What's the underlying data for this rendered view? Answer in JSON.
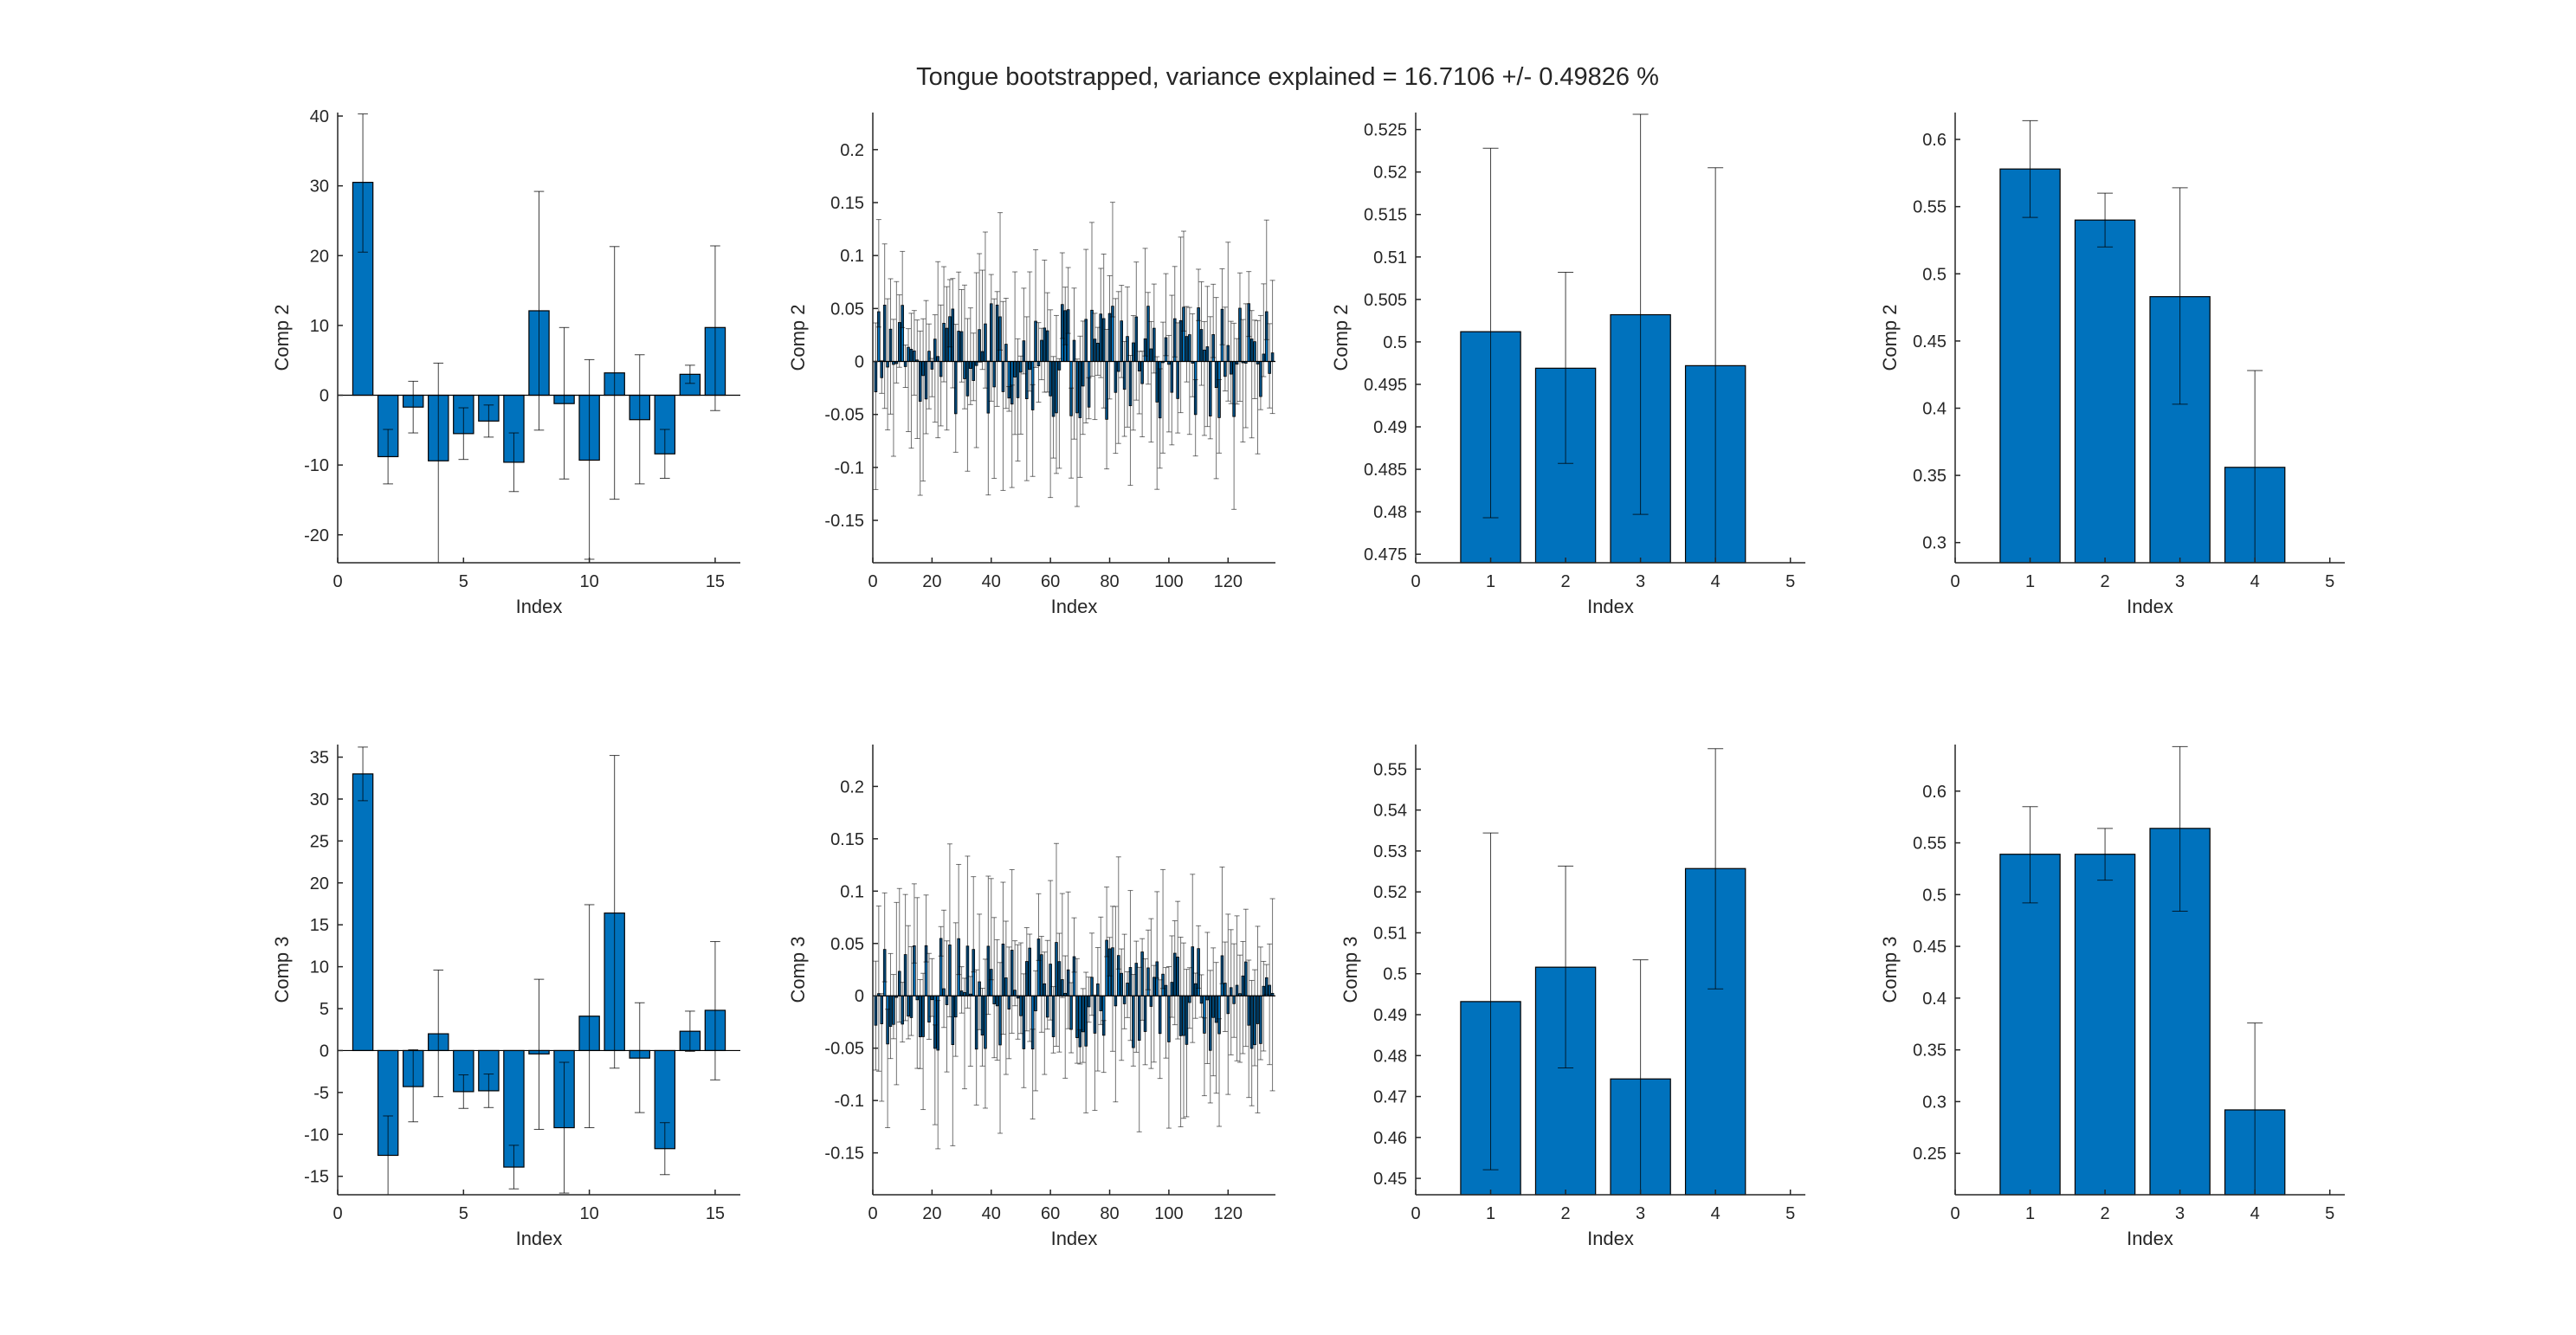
{
  "figure": {
    "suptitle": "Tongue bootstrapped, variance explained = 16.7106 +/- 0.49826 %",
    "bar_color": "#0072BD",
    "bar_edge": "#000000",
    "axis_color": "#262626"
  },
  "chart_data": [
    {
      "type": "bar",
      "ylabel": "Comp 2",
      "xlabel": "Index",
      "xlim": [
        0,
        16
      ],
      "ylim": [
        -24,
        40.5
      ],
      "xticks": [
        0,
        5,
        10,
        15
      ],
      "xtick_labels": [
        "0",
        "5",
        "10",
        "15"
      ],
      "yticks": [
        -20,
        -10,
        0,
        10,
        20,
        30,
        40
      ],
      "ytick_labels": [
        "-20",
        "-10",
        "0",
        "10",
        "20",
        "30",
        "40"
      ],
      "x": [
        1,
        2,
        3,
        4,
        5,
        6,
        7,
        8,
        9,
        10,
        11,
        12,
        13,
        14,
        15
      ],
      "values": [
        30.5,
        -8.8,
        -1.7,
        -9.4,
        -5.5,
        -3.7,
        -9.6,
        12.1,
        -1.2,
        -9.3,
        3.2,
        -3.5,
        -8.4,
        3.0,
        9.7
      ],
      "err_low": [
        20.5,
        -12.7,
        -5.4,
        -24.0,
        -9.2,
        -6.0,
        -13.8,
        -5.0,
        -12.0,
        -23.5,
        -14.9,
        -12.7,
        -11.9,
        1.7,
        -2.2
      ],
      "err_high": [
        40.3,
        -4.9,
        2.0,
        4.6,
        -1.8,
        -1.4,
        -5.4,
        29.2,
        9.7,
        5.1,
        21.3,
        5.8,
        -4.9,
        4.3,
        21.4
      ]
    },
    {
      "type": "bar",
      "ylabel": "Comp 2",
      "xlabel": "Index",
      "xlim": [
        0,
        136
      ],
      "ylim": [
        -0.19,
        0.235
      ],
      "xticks": [
        0,
        20,
        40,
        60,
        80,
        100,
        120
      ],
      "xtick_labels": [
        "0",
        "20",
        "40",
        "60",
        "80",
        "100",
        "120"
      ],
      "yticks": [
        -0.15,
        -0.1,
        -0.05,
        0,
        0.05,
        0.1,
        0.15,
        0.2
      ],
      "ytick_labels": [
        "-0.15",
        "-0.1",
        "-0.05",
        "0",
        "0.05",
        "0.1",
        "0.15",
        "0.2"
      ],
      "n": 135,
      "seed": 7,
      "amplitude": 0.055,
      "err_scale": 0.09,
      "values": []
    },
    {
      "type": "bar",
      "ylabel": "Comp 2",
      "xlabel": "Index",
      "xlim": [
        0,
        5.2
      ],
      "ylim": [
        0.474,
        0.527
      ],
      "xticks": [
        0,
        1,
        2,
        3,
        4,
        5
      ],
      "xtick_labels": [
        "0",
        "1",
        "2",
        "3",
        "4",
        "5"
      ],
      "yticks": [
        0.475,
        0.48,
        0.485,
        0.49,
        0.495,
        0.5,
        0.505,
        0.51,
        0.515,
        0.52,
        0.525
      ],
      "ytick_labels": [
        "0.475",
        "0.48",
        "0.485",
        "0.49",
        "0.495",
        "0.5",
        "0.505",
        "0.51",
        "0.515",
        "0.52",
        "0.525"
      ],
      "x": [
        1,
        2,
        3,
        4
      ],
      "values": [
        0.5012,
        0.4969,
        0.5032,
        0.4972
      ],
      "err_low": [
        0.4793,
        0.4857,
        0.4797,
        0.474
      ],
      "err_high": [
        0.5228,
        0.5082,
        0.5268,
        0.5205
      ]
    },
    {
      "type": "bar",
      "ylabel": "Comp 2",
      "xlabel": "Index",
      "xlim": [
        0,
        5.2
      ],
      "ylim": [
        0.285,
        0.62
      ],
      "xticks": [
        0,
        1,
        2,
        3,
        4,
        5
      ],
      "xtick_labels": [
        "0",
        "1",
        "2",
        "3",
        "4",
        "5"
      ],
      "yticks": [
        0.3,
        0.35,
        0.4,
        0.45,
        0.5,
        0.55,
        0.6
      ],
      "ytick_labels": [
        "0.3",
        "0.35",
        "0.4",
        "0.45",
        "0.5",
        "0.55",
        "0.6"
      ],
      "x": [
        1,
        2,
        3,
        4
      ],
      "values": [
        0.578,
        0.54,
        0.483,
        0.356
      ],
      "err_low": [
        0.542,
        0.52,
        0.403,
        0.285
      ],
      "err_high": [
        0.614,
        0.56,
        0.564,
        0.428
      ]
    },
    {
      "type": "bar",
      "ylabel": "Comp 3",
      "xlabel": "Index",
      "xlim": [
        0,
        16
      ],
      "ylim": [
        -17.2,
        36.5
      ],
      "xticks": [
        0,
        5,
        10,
        15
      ],
      "xtick_labels": [
        "0",
        "5",
        "10",
        "15"
      ],
      "yticks": [
        -15,
        -10,
        -5,
        0,
        5,
        10,
        15,
        20,
        25,
        30,
        35
      ],
      "ytick_labels": [
        "-15",
        "-10",
        "-5",
        "0",
        "5",
        "10",
        "15",
        "20",
        "25",
        "30",
        "35"
      ],
      "x": [
        1,
        2,
        3,
        4,
        5,
        6,
        7,
        8,
        9,
        10,
        11,
        12,
        13,
        14,
        15
      ],
      "values": [
        33.0,
        -12.5,
        -4.3,
        2.0,
        -4.9,
        -4.8,
        -13.9,
        -0.4,
        -9.2,
        4.1,
        16.4,
        -0.9,
        -11.7,
        2.3,
        4.8
      ],
      "err_low": [
        29.8,
        -17.2,
        -8.5,
        -5.5,
        -6.9,
        -6.8,
        -16.5,
        -9.4,
        -17.0,
        -9.2,
        -2.1,
        -7.4,
        -14.8,
        -0.1,
        -3.5
      ],
      "err_high": [
        36.2,
        -7.8,
        0.1,
        9.6,
        -2.9,
        -2.8,
        -11.3,
        8.5,
        -1.4,
        17.4,
        35.2,
        5.7,
        -8.6,
        4.7,
        13.0
      ]
    },
    {
      "type": "bar",
      "ylabel": "Comp 3",
      "xlabel": "Index",
      "xlim": [
        0,
        136
      ],
      "ylim": [
        -0.19,
        0.24
      ],
      "xticks": [
        0,
        20,
        40,
        60,
        80,
        100,
        120
      ],
      "xtick_labels": [
        "0",
        "20",
        "40",
        "60",
        "80",
        "100",
        "120"
      ],
      "yticks": [
        -0.15,
        -0.1,
        -0.05,
        0,
        0.05,
        0.1,
        0.15,
        0.2
      ],
      "ytick_labels": [
        "-0.15",
        "-0.1",
        "-0.05",
        "0",
        "0.05",
        "0.1",
        "0.15",
        "0.2"
      ],
      "n": 135,
      "seed": 23,
      "amplitude": 0.055,
      "err_scale": 0.09,
      "values": []
    },
    {
      "type": "bar",
      "ylabel": "Comp 3",
      "xlabel": "Index",
      "xlim": [
        0,
        5.2
      ],
      "ylim": [
        0.446,
        0.556
      ],
      "xticks": [
        0,
        1,
        2,
        3,
        4,
        5
      ],
      "xtick_labels": [
        "0",
        "1",
        "2",
        "3",
        "4",
        "5"
      ],
      "yticks": [
        0.45,
        0.46,
        0.47,
        0.48,
        0.49,
        0.5,
        0.51,
        0.52,
        0.53,
        0.54,
        0.55
      ],
      "ytick_labels": [
        "0.45",
        "0.46",
        "0.47",
        "0.48",
        "0.49",
        "0.5",
        "0.51",
        "0.52",
        "0.53",
        "0.54",
        "0.55"
      ],
      "x": [
        1,
        2,
        3,
        4
      ],
      "values": [
        0.4932,
        0.5016,
        0.4743,
        0.5257
      ],
      "err_low": [
        0.4521,
        0.477,
        0.446,
        0.4963
      ],
      "err_high": [
        0.5344,
        0.5263,
        0.5034,
        0.555
      ]
    },
    {
      "type": "bar",
      "ylabel": "Comp 3",
      "xlabel": "Index",
      "xlim": [
        0,
        5.2
      ],
      "ylim": [
        0.21,
        0.645
      ],
      "xticks": [
        0,
        1,
        2,
        3,
        4,
        5
      ],
      "xtick_labels": [
        "0",
        "1",
        "2",
        "3",
        "4",
        "5"
      ],
      "yticks": [
        0.25,
        0.3,
        0.35,
        0.4,
        0.45,
        0.5,
        0.55,
        0.6
      ],
      "ytick_labels": [
        "0.25",
        "0.3",
        "0.35",
        "0.4",
        "0.45",
        "0.5",
        "0.55",
        "0.6"
      ],
      "x": [
        1,
        2,
        3,
        4
      ],
      "values": [
        0.539,
        0.539,
        0.564,
        0.292
      ],
      "err_low": [
        0.492,
        0.514,
        0.484,
        0.21
      ],
      "err_high": [
        0.585,
        0.564,
        0.643,
        0.376
      ]
    }
  ]
}
